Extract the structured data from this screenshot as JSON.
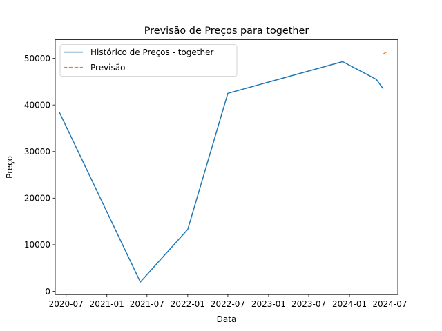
{
  "chart_data": {
    "type": "line",
    "title": "Previsão de Preços para together",
    "xlabel": "Data",
    "ylabel": "Preço",
    "x_scale": "date",
    "xlim": [
      "2020-05-13",
      "2024-08-06"
    ],
    "ylim": [
      -700,
      54000
    ],
    "x_ticks": [
      {
        "date": "2020-07-01",
        "label": "2020-07"
      },
      {
        "date": "2021-01-01",
        "label": "2021-01"
      },
      {
        "date": "2021-07-01",
        "label": "2021-07"
      },
      {
        "date": "2022-01-01",
        "label": "2022-01"
      },
      {
        "date": "2022-07-01",
        "label": "2022-07"
      },
      {
        "date": "2023-01-01",
        "label": "2023-01"
      },
      {
        "date": "2023-07-01",
        "label": "2023-07"
      },
      {
        "date": "2024-01-01",
        "label": "2024-01"
      },
      {
        "date": "2024-07-01",
        "label": "2024-07"
      }
    ],
    "y_ticks": [
      {
        "value": 0,
        "label": "0"
      },
      {
        "value": 10000,
        "label": "10000"
      },
      {
        "value": 20000,
        "label": "20000"
      },
      {
        "value": 30000,
        "label": "30000"
      },
      {
        "value": 40000,
        "label": "40000"
      },
      {
        "value": 50000,
        "label": "50000"
      }
    ],
    "grid": false,
    "legend_position": "top-left",
    "series": [
      {
        "name": "Histórico de Preços - together",
        "color": "#1f77b4",
        "style": "solid",
        "points": [
          {
            "x": "2020-06-01",
            "y": 38400
          },
          {
            "x": "2021-06-01",
            "y": 2000
          },
          {
            "x": "2022-01-01",
            "y": 13300
          },
          {
            "x": "2022-07-01",
            "y": 42500
          },
          {
            "x": "2023-12-01",
            "y": 49300
          },
          {
            "x": "2024-05-01",
            "y": 45500
          },
          {
            "x": "2024-06-01",
            "y": 43500
          }
        ]
      },
      {
        "name": "Previsão",
        "color": "#ff7f0e",
        "style": "dashed",
        "points": [
          {
            "x": "2024-06-01",
            "y": 50900
          },
          {
            "x": "2024-06-20",
            "y": 51500
          }
        ]
      }
    ]
  }
}
